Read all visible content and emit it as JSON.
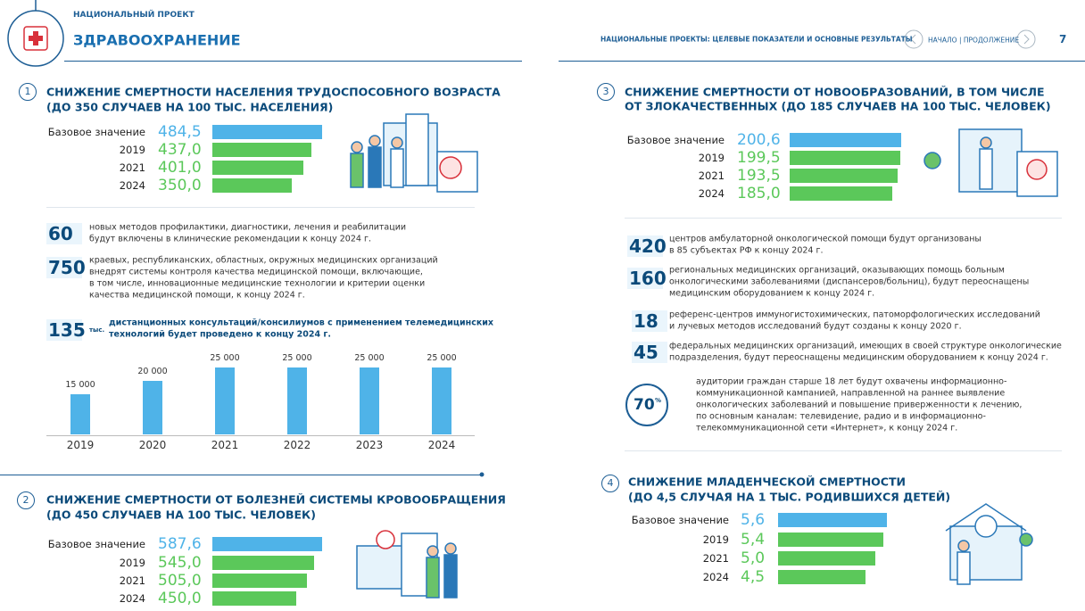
{
  "header": {
    "project_label": "НАЦИОНАЛЬНЫЙ ПРОЕКТ",
    "project": "ЗДРАВООХРАНЕНИЕ",
    "series_title": "НАЦИОНАЛЬНЫЕ ПРОЕКТЫ: ЦЕЛЕВЫЕ ПОКАЗАТЕЛИ И ОСНОВНЫЕ РЕЗУЛЬТАТЫ",
    "nav": "НАЧАЛО | ПРОДОЛЖЕНИЕ",
    "page": "7"
  },
  "sections": [
    {
      "number": "1",
      "title": [
        "СНИЖЕНИЕ СМЕРТНОСТИ НАСЕЛЕНИЯ ТРУДОСПОСОБНОГО ВОЗРАСТА",
        "(ДО 350 СЛУЧАЕВ НА 100 ТЫС. НАСЕЛЕНИЯ)"
      ],
      "bars": {
        "categories": [
          "Базовое значение",
          "2019",
          "2021",
          "2024"
        ],
        "values": [
          484.5,
          437.0,
          401.0,
          350.0
        ],
        "value_labels": [
          "484,5",
          "437,0",
          "401,0",
          "350,0"
        ]
      },
      "facts": [
        {
          "number": "60",
          "lines": [
            "новых методов профилактики, диагностики, лечения и реабилитации",
            "будут включены в клинические рекомендации к концу 2024 г."
          ]
        },
        {
          "number": "750",
          "lines": [
            "краевых, республиканских, областных, окружных медицинских организаций",
            "внедрят системы контроля качества медицинской помощи, включающие,",
            "в том числе, инновационные медицинские технологии и критерии оценки",
            "качества медицинской помощи, к концу 2024 г."
          ]
        },
        {
          "number": "135",
          "unit": "тыс.",
          "lines": [
            "дистанционных консультаций/консилиумов с применением телемедицинских",
            "технологий будет проведено к концу 2024 г."
          ]
        }
      ],
      "columns": {
        "categories": [
          "2019",
          "2020",
          "2021",
          "2022",
          "2023",
          "2024"
        ],
        "values": [
          15000,
          20000,
          25000,
          25000,
          25000,
          25000
        ],
        "value_labels": [
          "15 000",
          "20 000",
          "25 000",
          "25 000",
          "25 000",
          "25 000"
        ]
      }
    },
    {
      "number": "2",
      "title": [
        "СНИЖЕНИЕ СМЕРТНОСТИ ОТ БОЛЕЗНЕЙ СИСТЕМЫ КРОВООБРАЩЕНИЯ",
        "(ДО 450 СЛУЧАЕВ НА 100 ТЫС. ЧЕЛОВЕК)"
      ],
      "bars": {
        "categories": [
          "Базовое значение",
          "2019",
          "2021",
          "2024"
        ],
        "values": [
          587.6,
          545.0,
          505.0,
          450.0
        ],
        "value_labels": [
          "587,6",
          "545,0",
          "505,0",
          "450,0"
        ]
      }
    },
    {
      "number": "3",
      "title": [
        "СНИЖЕНИЕ СМЕРТНОСТИ ОТ НОВООБРАЗОВАНИЙ, В ТОМ ЧИСЛЕ",
        "ОТ ЗЛОКАЧЕСТВЕННЫХ (ДО 185 СЛУЧАЕВ НА 100 ТЫС. ЧЕЛОВЕК)"
      ],
      "bars": {
        "categories": [
          "Базовое значение",
          "2019",
          "2021",
          "2024"
        ],
        "values": [
          200.6,
          199.5,
          193.5,
          185.0
        ],
        "value_labels": [
          "200,6",
          "199,5",
          "193,5",
          "185,0"
        ]
      },
      "facts": [
        {
          "number": "420",
          "lines": [
            "центров амбулаторной онкологической помощи будут организованы",
            "в 85 субъектах РФ к концу 2024 г."
          ]
        },
        {
          "number": "160",
          "lines": [
            "региональных медицинских организаций, оказывающих помощь больным",
            "онкологическими заболеваниями (диспансеров/больниц), будут переоснащены",
            "медицинским оборудованием к концу 2024 г."
          ]
        },
        {
          "number": "18",
          "lines": [
            "референс-центров иммуногистохимических, патоморфологических исследований",
            "и лучевых методов исследований будут созданы к концу 2020 г."
          ]
        },
        {
          "number": "45",
          "lines": [
            "федеральных медицинских организаций, имеющих в своей структуре онкологические",
            "подразделения, будут переоснащены медицинским оборудованием к концу 2024 г."
          ]
        },
        {
          "number": "70",
          "unit": "%",
          "lines": [
            "аудитории граждан старше 18 лет будут охвачены информационно-",
            "коммуникационной кампанией, направленной на раннее выявление",
            "онкологических заболеваний и повышение приверженности к лечению,",
            "по основным каналам: телевидение, радио и в информационно-",
            "телекоммуникационной сети «Интернет», к концу 2024 г."
          ]
        }
      ]
    },
    {
      "number": "4",
      "title": [
        "СНИЖЕНИЕ МЛАДЕНЧЕСКОЙ СМЕРТНОСТИ",
        "(ДО 4,5 СЛУЧАЯ НА 1 ТЫС. РОДИВШИХСЯ ДЕТЕЙ)"
      ],
      "bars": {
        "categories": [
          "Базовое значение",
          "2019",
          "2021",
          "2024"
        ],
        "values": [
          5.6,
          5.4,
          5.0,
          4.5
        ],
        "value_labels": [
          "5,6",
          "5,4",
          "5,0",
          "4,5"
        ]
      }
    }
  ]
}
